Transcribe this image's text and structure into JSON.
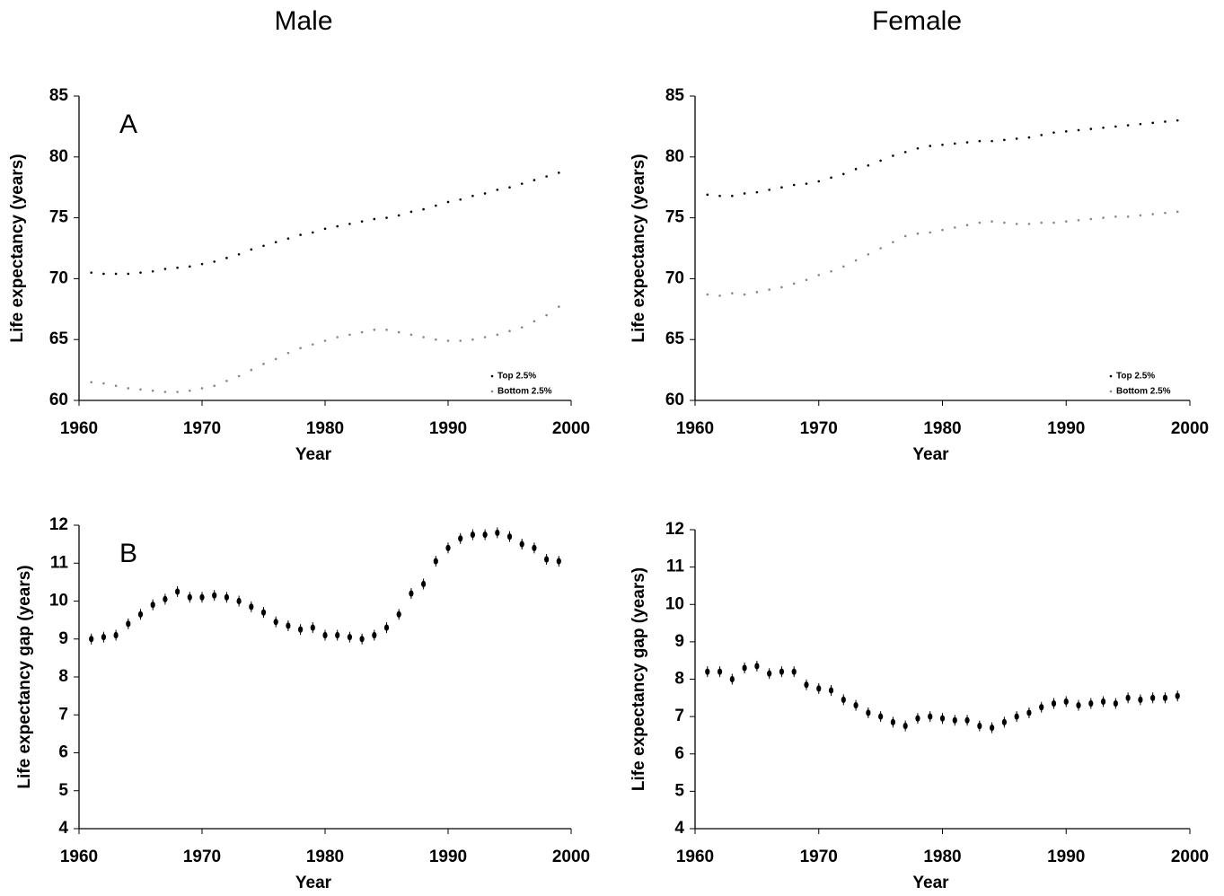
{
  "chart_data": [
    {
      "type": "scatter",
      "title": "Male",
      "annotation": "A",
      "x_label": "Year",
      "y_label": "Life expectancy (years)",
      "x": [
        1961,
        1962,
        1963,
        1964,
        1965,
        1966,
        1967,
        1968,
        1969,
        1970,
        1971,
        1972,
        1973,
        1974,
        1975,
        1976,
        1977,
        1978,
        1979,
        1980,
        1981,
        1982,
        1983,
        1984,
        1985,
        1986,
        1987,
        1988,
        1989,
        1990,
        1991,
        1992,
        1993,
        1994,
        1995,
        1996,
        1997,
        1998,
        1999
      ],
      "series": [
        {
          "name": "Top 2.5%",
          "color": "#000000",
          "values": [
            70.5,
            70.4,
            70.4,
            70.4,
            70.5,
            70.6,
            70.8,
            70.9,
            71.0,
            71.2,
            71.4,
            71.7,
            72.0,
            72.4,
            72.7,
            73.0,
            73.3,
            73.6,
            73.8,
            74.1,
            74.3,
            74.5,
            74.7,
            74.9,
            75.0,
            75.2,
            75.5,
            75.7,
            76.0,
            76.3,
            76.5,
            76.8,
            77.0,
            77.3,
            77.5,
            77.8,
            78.1,
            78.4,
            78.7
          ]
        },
        {
          "name": "Bottom 2.5%",
          "color": "#888888",
          "values": [
            61.5,
            61.4,
            61.2,
            61.0,
            60.9,
            60.8,
            60.7,
            60.7,
            60.8,
            61.0,
            61.2,
            61.6,
            62.0,
            62.5,
            63.0,
            63.4,
            63.9,
            64.3,
            64.6,
            64.9,
            65.2,
            65.4,
            65.6,
            65.8,
            65.8,
            65.6,
            65.4,
            65.2,
            65.0,
            64.9,
            64.9,
            65.0,
            65.2,
            65.4,
            65.7,
            66.0,
            66.5,
            67.0,
            67.7
          ]
        }
      ],
      "xlim": [
        1960,
        2000
      ],
      "xticks": [
        1960,
        1970,
        1980,
        1990,
        2000
      ],
      "ylim": [
        60,
        85
      ],
      "yticks": [
        60,
        65,
        70,
        75,
        80,
        85
      ],
      "legend": "lower right"
    },
    {
      "type": "scatter",
      "title": "Female",
      "x_label": "Year",
      "y_label": "Life expectancy (years)",
      "x": [
        1961,
        1962,
        1963,
        1964,
        1965,
        1966,
        1967,
        1968,
        1969,
        1970,
        1971,
        1972,
        1973,
        1974,
        1975,
        1976,
        1977,
        1978,
        1979,
        1980,
        1981,
        1982,
        1983,
        1984,
        1985,
        1986,
        1987,
        1988,
        1989,
        1990,
        1991,
        1992,
        1993,
        1994,
        1995,
        1996,
        1997,
        1998,
        1999
      ],
      "series": [
        {
          "name": "Top 2.5%",
          "color": "#000000",
          "values": [
            76.9,
            76.8,
            76.8,
            77.0,
            77.1,
            77.3,
            77.5,
            77.7,
            77.8,
            78.0,
            78.3,
            78.6,
            79.0,
            79.3,
            79.7,
            80.1,
            80.4,
            80.7,
            80.9,
            81.0,
            81.1,
            81.2,
            81.3,
            81.3,
            81.4,
            81.5,
            81.6,
            81.8,
            82.0,
            82.1,
            82.2,
            82.3,
            82.4,
            82.5,
            82.6,
            82.7,
            82.8,
            82.9,
            83.0
          ]
        },
        {
          "name": "Bottom 2.5%",
          "color": "#888888",
          "values": [
            68.7,
            68.6,
            68.8,
            68.7,
            68.9,
            69.1,
            69.3,
            69.6,
            69.9,
            70.3,
            70.6,
            71.0,
            71.5,
            72.0,
            72.5,
            73.0,
            73.5,
            73.7,
            73.8,
            74.0,
            74.2,
            74.4,
            74.6,
            74.7,
            74.6,
            74.5,
            74.5,
            74.6,
            74.6,
            74.7,
            74.8,
            74.9,
            75.0,
            75.1,
            75.1,
            75.2,
            75.3,
            75.4,
            75.5
          ]
        }
      ],
      "xlim": [
        1960,
        2000
      ],
      "xticks": [
        1960,
        1970,
        1980,
        1990,
        2000
      ],
      "ylim": [
        60,
        85
      ],
      "yticks": [
        60,
        65,
        70,
        75,
        80,
        85
      ],
      "legend": "lower right"
    },
    {
      "type": "scatter",
      "annotation": "B",
      "x_label": "Year",
      "y_label": "Life expectancy gap (years)",
      "x": [
        1961,
        1962,
        1963,
        1964,
        1965,
        1966,
        1967,
        1968,
        1969,
        1970,
        1971,
        1972,
        1973,
        1974,
        1975,
        1976,
        1977,
        1978,
        1979,
        1980,
        1981,
        1982,
        1983,
        1984,
        1985,
        1986,
        1987,
        1988,
        1989,
        1990,
        1991,
        1992,
        1993,
        1994,
        1995,
        1996,
        1997,
        1998,
        1999
      ],
      "values": [
        9.0,
        9.05,
        9.1,
        9.4,
        9.65,
        9.9,
        10.05,
        10.25,
        10.1,
        10.1,
        10.15,
        10.1,
        10.0,
        9.85,
        9.7,
        9.45,
        9.35,
        9.25,
        9.3,
        9.1,
        9.1,
        9.05,
        9.0,
        9.1,
        9.3,
        9.65,
        10.2,
        10.45,
        11.05,
        11.4,
        11.65,
        11.75,
        11.75,
        11.8,
        11.7,
        11.5,
        11.4,
        11.1,
        11.05
      ],
      "color": "#000000",
      "xlim": [
        1960,
        2000
      ],
      "xticks": [
        1960,
        1970,
        1980,
        1990,
        2000
      ],
      "ylim": [
        4,
        12
      ],
      "yticks": [
        4,
        5,
        6,
        7,
        8,
        9,
        10,
        11,
        12
      ]
    },
    {
      "type": "scatter",
      "x_label": "Year",
      "y_label": "Life expectancy gap (years)",
      "x": [
        1961,
        1962,
        1963,
        1964,
        1965,
        1966,
        1967,
        1968,
        1969,
        1970,
        1971,
        1972,
        1973,
        1974,
        1975,
        1976,
        1977,
        1978,
        1979,
        1980,
        1981,
        1982,
        1983,
        1984,
        1985,
        1986,
        1987,
        1988,
        1989,
        1990,
        1991,
        1992,
        1993,
        1994,
        1995,
        1996,
        1997,
        1998,
        1999
      ],
      "values": [
        8.2,
        8.2,
        8.0,
        8.3,
        8.35,
        8.15,
        8.2,
        8.2,
        7.85,
        7.75,
        7.7,
        7.45,
        7.3,
        7.1,
        7.0,
        6.85,
        6.75,
        6.95,
        7.0,
        6.95,
        6.9,
        6.9,
        6.75,
        6.7,
        6.85,
        7.0,
        7.1,
        7.25,
        7.35,
        7.4,
        7.3,
        7.35,
        7.4,
        7.35,
        7.5,
        7.45,
        7.5,
        7.5,
        7.55
      ],
      "color": "#000000",
      "xlim": [
        1960,
        2000
      ],
      "xticks": [
        1960,
        1970,
        1980,
        1990,
        2000
      ],
      "ylim": [
        4,
        12
      ],
      "yticks": [
        4,
        5,
        6,
        7,
        8,
        9,
        10,
        11,
        12
      ]
    }
  ]
}
